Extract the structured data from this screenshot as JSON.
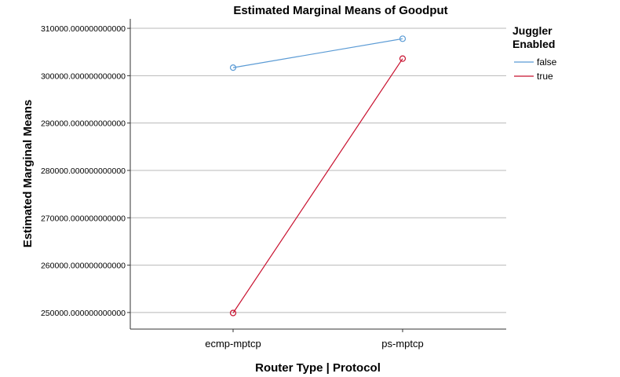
{
  "chart_data": {
    "type": "line",
    "title": "Estimated Marginal Means of Goodput",
    "xlabel": "Router Type | Protocol",
    "ylabel": "Estimated Marginal Means",
    "categories": [
      "ecmp-mptcp",
      "ps-mptcp"
    ],
    "ylim": [
      246500,
      312000
    ],
    "yticks": [
      250000,
      260000,
      270000,
      280000,
      290000,
      300000,
      310000
    ],
    "ytick_labels": [
      "250000.000000000000",
      "260000.000000000000",
      "270000.000000000000",
      "280000.000000000000",
      "290000.000000000000",
      "300000.000000000000",
      "310000.000000000000"
    ],
    "grid": true,
    "legend_title_lines": [
      "Juggler",
      "Enabled"
    ],
    "legend_position": "top-right",
    "series": [
      {
        "name": "false",
        "color": "#5b9bd5",
        "values": [
          301700,
          307800
        ]
      },
      {
        "name": "true",
        "color": "#c8102e",
        "values": [
          249900,
          303600
        ]
      }
    ]
  }
}
